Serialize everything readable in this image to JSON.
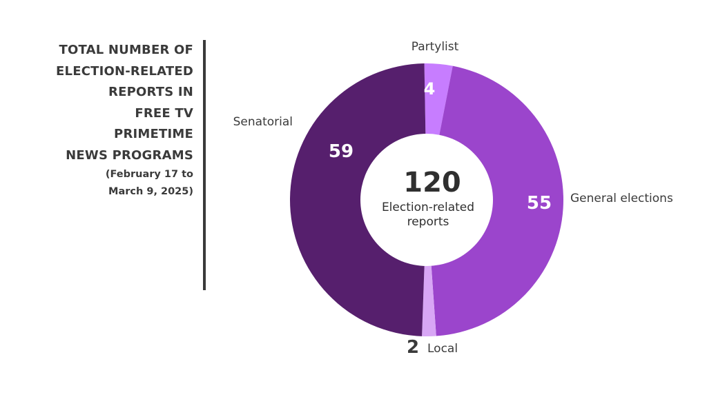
{
  "title_lines": [
    "TOTAL NUMBER OF",
    "ELECTION-RELATED",
    "REPORTS IN",
    "FREE TV",
    "PRIMETIME",
    "NEWS PROGRAMS"
  ],
  "subtitle_lines": [
    "(February 17 to",
    "March 9, 2025)"
  ],
  "chart_data": {
    "type": "pie",
    "title": "TOTAL NUMBER OF ELECTION-RELATED REPORTS IN FREE TV PRIMETIME NEWS PROGRAMS",
    "subtitle": "(February 17 to March 9, 2025)",
    "donut": true,
    "center_total": "120",
    "center_label_lines": [
      "Election-related",
      "reports"
    ],
    "slices": [
      {
        "label": "Partylist",
        "value": 4,
        "value_text": "4",
        "color": "#c77dff"
      },
      {
        "label": "General elections",
        "value": 55,
        "value_text": "55",
        "color": "#9b45cc"
      },
      {
        "label": "Local",
        "value": 2,
        "value_text": "2",
        "color": "#d8a6f5"
      },
      {
        "label": "Senatorial",
        "value": 59,
        "value_text": "59",
        "color": "#561f6d"
      }
    ]
  }
}
